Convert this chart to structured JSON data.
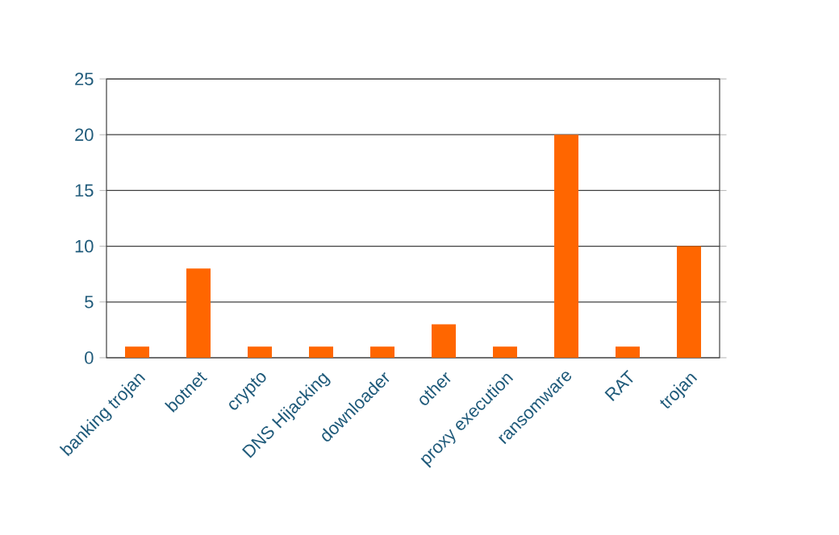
{
  "chart_data": {
    "type": "bar",
    "categories": [
      "banking trojan",
      "botnet",
      "crypto",
      "DNS Hijacking",
      "downloader",
      "other",
      "proxy execution",
      "ransomware",
      "RAT",
      "trojan"
    ],
    "values": [
      1,
      8,
      1,
      1,
      1,
      3,
      1,
      20,
      1,
      10
    ],
    "color": "#ff6600",
    "ylim": [
      0,
      25
    ],
    "yticks": [
      0,
      5,
      10,
      15,
      20,
      25
    ],
    "grid": "y"
  }
}
